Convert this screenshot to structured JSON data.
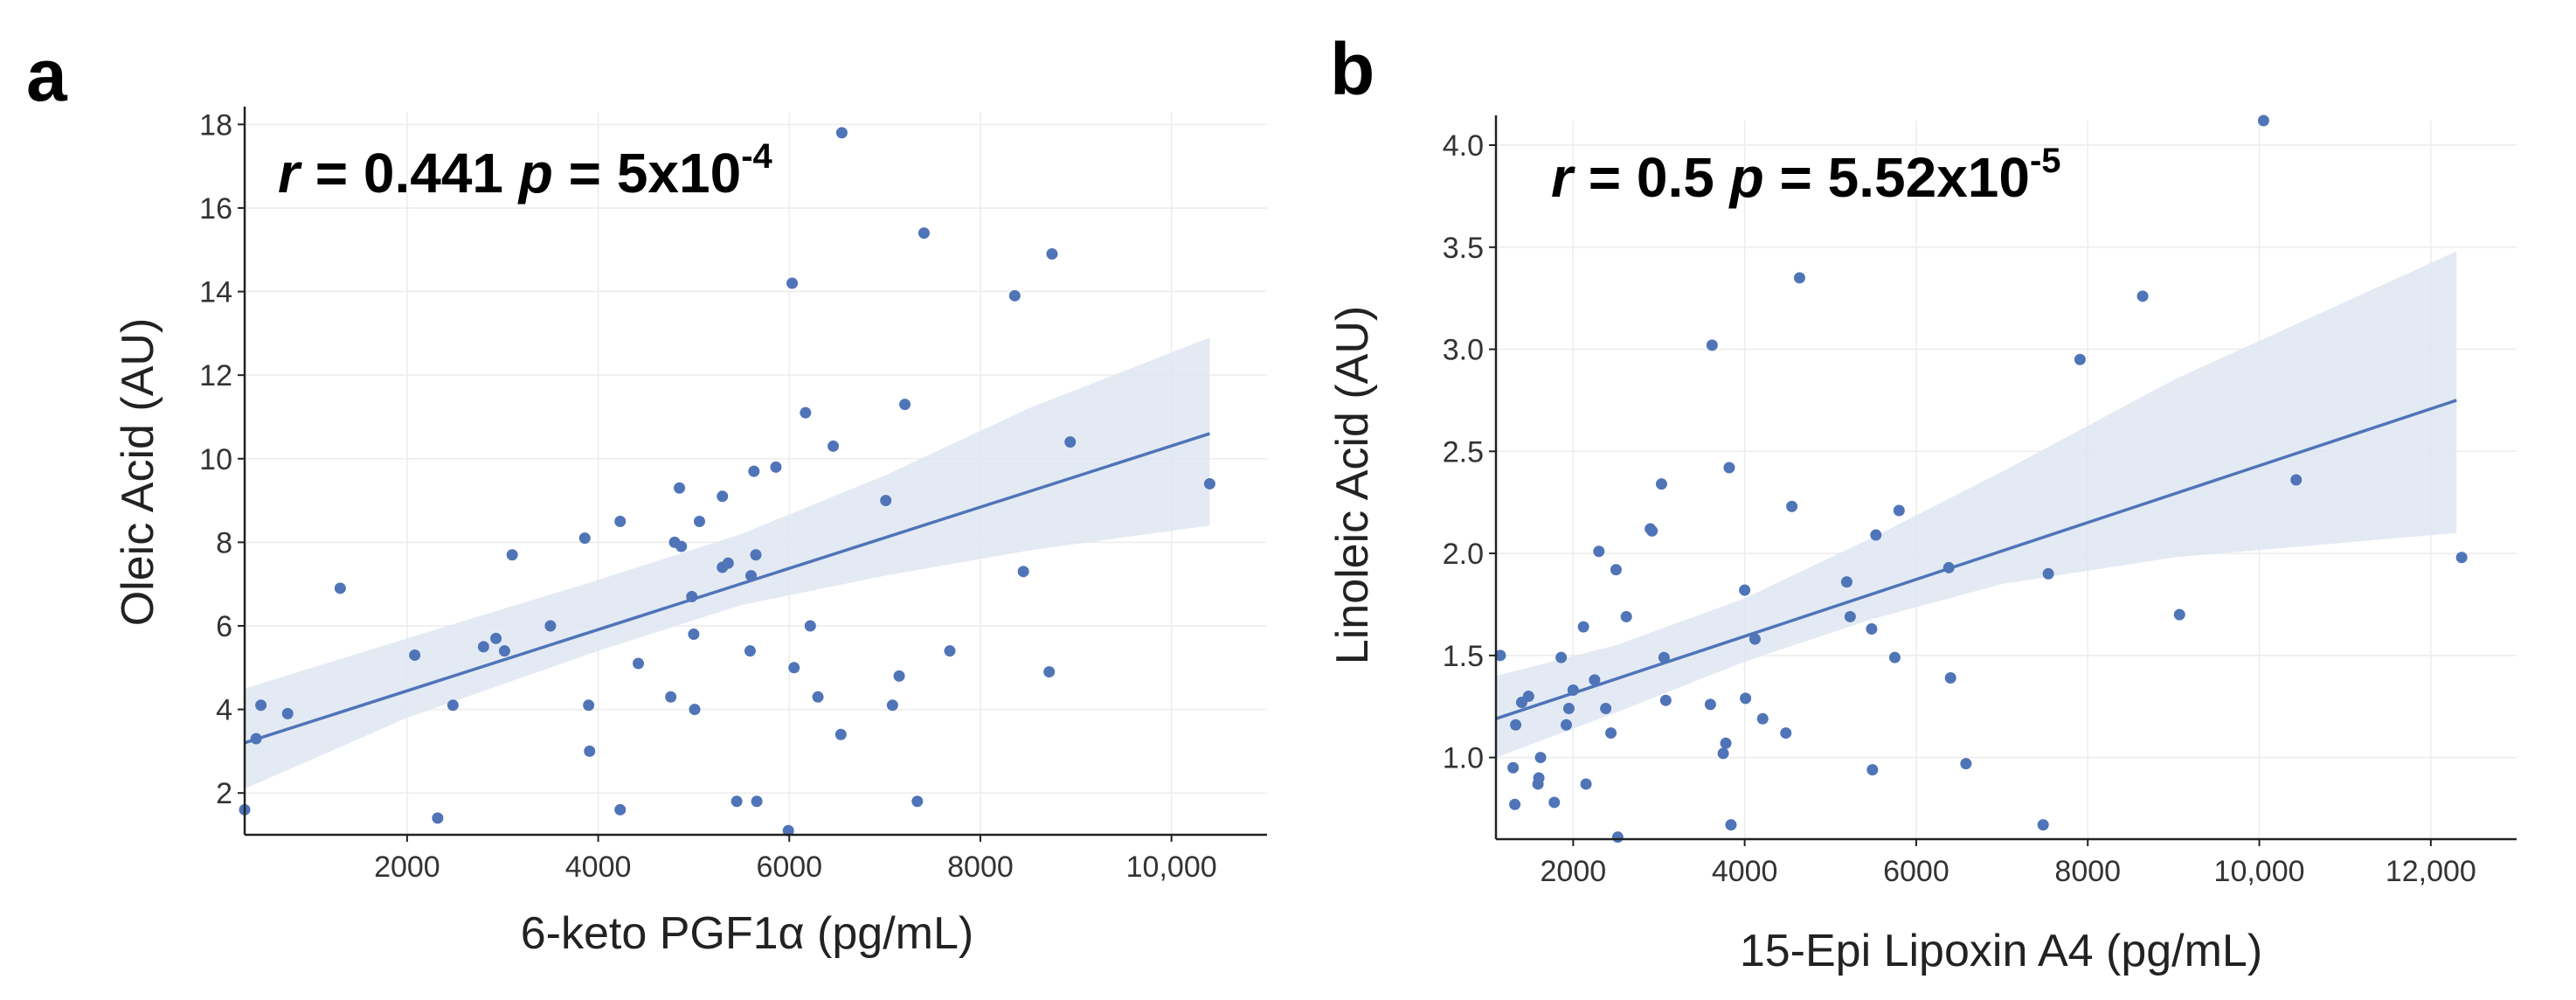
{
  "chart_data": [
    {
      "type": "scatter",
      "panel_label": "a",
      "stat": {
        "r_sym": "r",
        "r_eq": " = 0.441 ",
        "p_sym": "p",
        "p_eq": " = 5x10",
        "p_exp": "-4"
      },
      "xlabel": "6-keto PGF1α (pg/mL)",
      "ylabel": "Oleic Acid (AU)",
      "xlim": [
        300,
        11000
      ],
      "ylim": [
        1.0,
        18.3
      ],
      "xticks": [
        2000,
        4000,
        6000,
        8000,
        10000
      ],
      "xtick_labels": [
        "2000",
        "4000",
        "6000",
        "8000",
        "10,000"
      ],
      "yticks": [
        2,
        4,
        6,
        8,
        10,
        12,
        14,
        16,
        18
      ],
      "ytick_labels": [
        "2",
        "4",
        "6",
        "8",
        "10",
        "12",
        "14",
        "16",
        "18"
      ],
      "fit": {
        "x": [
          300,
          10400
        ],
        "y": [
          3.2,
          10.6
        ]
      },
      "ci": {
        "x": [
          300,
          2000,
          4000,
          5500,
          7000,
          8500,
          10400
        ],
        "lower": [
          2.1,
          3.8,
          5.4,
          6.5,
          7.2,
          7.8,
          8.4
        ],
        "upper": [
          4.5,
          5.7,
          7.1,
          8.2,
          9.6,
          11.2,
          12.9
        ]
      },
      "points": [
        {
          "x": 300,
          "y": 1.6
        },
        {
          "x": 420,
          "y": 3.3
        },
        {
          "x": 470,
          "y": 4.1
        },
        {
          "x": 750,
          "y": 3.9
        },
        {
          "x": 1300,
          "y": 6.9
        },
        {
          "x": 2080,
          "y": 5.3
        },
        {
          "x": 2320,
          "y": 1.4
        },
        {
          "x": 2480,
          "y": 4.1
        },
        {
          "x": 2800,
          "y": 5.5
        },
        {
          "x": 2930,
          "y": 5.7
        },
        {
          "x": 3020,
          "y": 5.4
        },
        {
          "x": 3100,
          "y": 7.7
        },
        {
          "x": 3500,
          "y": 6.0
        },
        {
          "x": 3860,
          "y": 8.1
        },
        {
          "x": 3900,
          "y": 4.1
        },
        {
          "x": 3910,
          "y": 3.0
        },
        {
          "x": 4230,
          "y": 8.5
        },
        {
          "x": 4230,
          "y": 1.6
        },
        {
          "x": 4420,
          "y": 5.1
        },
        {
          "x": 4760,
          "y": 4.3
        },
        {
          "x": 4800,
          "y": 8.0
        },
        {
          "x": 4850,
          "y": 9.3
        },
        {
          "x": 4870,
          "y": 7.9
        },
        {
          "x": 4980,
          "y": 6.7
        },
        {
          "x": 5000,
          "y": 5.8
        },
        {
          "x": 5010,
          "y": 4.0
        },
        {
          "x": 5060,
          "y": 8.5
        },
        {
          "x": 5300,
          "y": 9.1
        },
        {
          "x": 5300,
          "y": 7.4
        },
        {
          "x": 5360,
          "y": 7.5
        },
        {
          "x": 5450,
          "y": 1.8
        },
        {
          "x": 5590,
          "y": 5.4
        },
        {
          "x": 5600,
          "y": 7.2
        },
        {
          "x": 5630,
          "y": 9.7
        },
        {
          "x": 5650,
          "y": 7.7
        },
        {
          "x": 5660,
          "y": 1.8
        },
        {
          "x": 5860,
          "y": 9.8
        },
        {
          "x": 5990,
          "y": 1.1
        },
        {
          "x": 6030,
          "y": 14.2
        },
        {
          "x": 6050,
          "y": 5.0
        },
        {
          "x": 6170,
          "y": 11.1
        },
        {
          "x": 6220,
          "y": 6.0
        },
        {
          "x": 6300,
          "y": 4.3
        },
        {
          "x": 6460,
          "y": 10.3
        },
        {
          "x": 6540,
          "y": 3.4
        },
        {
          "x": 6550,
          "y": 17.8
        },
        {
          "x": 7010,
          "y": 9.0
        },
        {
          "x": 7080,
          "y": 4.1
        },
        {
          "x": 7150,
          "y": 4.8
        },
        {
          "x": 7210,
          "y": 11.3
        },
        {
          "x": 7340,
          "y": 1.8
        },
        {
          "x": 7410,
          "y": 15.4
        },
        {
          "x": 7680,
          "y": 5.4
        },
        {
          "x": 8360,
          "y": 13.9
        },
        {
          "x": 8450,
          "y": 7.3
        },
        {
          "x": 8720,
          "y": 4.9
        },
        {
          "x": 8750,
          "y": 14.9
        },
        {
          "x": 8940,
          "y": 10.4
        },
        {
          "x": 10400,
          "y": 9.4
        }
      ]
    },
    {
      "type": "scatter",
      "panel_label": "b",
      "stat": {
        "r_sym": "r",
        "r_eq": " = 0.5 ",
        "p_sym": "p",
        "p_eq": " = 5.52x10",
        "p_exp": "-5"
      },
      "xlabel": "15-Epi Lipoxin A4  (pg/mL)",
      "ylabel": "Linoleic Acid (AU)",
      "xlim": [
        1100,
        13000
      ],
      "ylim": [
        0.6,
        4.12
      ],
      "xticks": [
        2000,
        4000,
        6000,
        8000,
        10000,
        12000
      ],
      "xtick_labels": [
        "2000",
        "4000",
        "6000",
        "8000",
        "10,000",
        "12,000"
      ],
      "yticks": [
        1.0,
        1.5,
        2.0,
        2.5,
        3.0,
        3.5,
        4.0
      ],
      "ytick_labels": [
        "1.0",
        "1.5",
        "2.0",
        "2.5",
        "3.0",
        "3.5",
        "4.0"
      ],
      "fit": {
        "x": [
          1100,
          12300
        ],
        "y": [
          1.19,
          2.75
        ]
      },
      "ci": {
        "x": [
          1100,
          2500,
          4000,
          5500,
          7000,
          9000,
          12300
        ],
        "lower": [
          1.0,
          1.22,
          1.47,
          1.68,
          1.85,
          1.98,
          2.1
        ],
        "upper": [
          1.4,
          1.55,
          1.78,
          2.08,
          2.4,
          2.85,
          3.48
        ]
      },
      "points": [
        {
          "x": 1150,
          "y": 1.5
        },
        {
          "x": 1300,
          "y": 0.95
        },
        {
          "x": 1320,
          "y": 0.77
        },
        {
          "x": 1330,
          "y": 1.16
        },
        {
          "x": 1400,
          "y": 1.27
        },
        {
          "x": 1480,
          "y": 1.3
        },
        {
          "x": 1590,
          "y": 0.87
        },
        {
          "x": 1600,
          "y": 0.9
        },
        {
          "x": 1620,
          "y": 1.0
        },
        {
          "x": 1780,
          "y": 0.78
        },
        {
          "x": 1860,
          "y": 1.49
        },
        {
          "x": 1920,
          "y": 1.16
        },
        {
          "x": 1950,
          "y": 1.24
        },
        {
          "x": 2000,
          "y": 1.33
        },
        {
          "x": 2120,
          "y": 1.64
        },
        {
          "x": 2150,
          "y": 0.87
        },
        {
          "x": 2250,
          "y": 1.38
        },
        {
          "x": 2300,
          "y": 2.01
        },
        {
          "x": 2380,
          "y": 1.24
        },
        {
          "x": 2440,
          "y": 1.12
        },
        {
          "x": 2500,
          "y": 1.92
        },
        {
          "x": 2520,
          "y": 0.61
        },
        {
          "x": 2620,
          "y": 1.69
        },
        {
          "x": 2900,
          "y": 2.12
        },
        {
          "x": 2920,
          "y": 2.11
        },
        {
          "x": 3030,
          "y": 2.34
        },
        {
          "x": 3060,
          "y": 1.49
        },
        {
          "x": 3080,
          "y": 1.28
        },
        {
          "x": 3600,
          "y": 1.26
        },
        {
          "x": 3620,
          "y": 3.02
        },
        {
          "x": 3750,
          "y": 1.02
        },
        {
          "x": 3780,
          "y": 1.07
        },
        {
          "x": 3820,
          "y": 2.42
        },
        {
          "x": 3840,
          "y": 0.67
        },
        {
          "x": 4000,
          "y": 1.82
        },
        {
          "x": 4010,
          "y": 1.29
        },
        {
          "x": 4120,
          "y": 1.58
        },
        {
          "x": 4210,
          "y": 1.19
        },
        {
          "x": 4480,
          "y": 1.12
        },
        {
          "x": 4550,
          "y": 2.23
        },
        {
          "x": 4640,
          "y": 3.35
        },
        {
          "x": 5190,
          "y": 1.86
        },
        {
          "x": 5230,
          "y": 1.69
        },
        {
          "x": 5480,
          "y": 1.63
        },
        {
          "x": 5490,
          "y": 0.94
        },
        {
          "x": 5530,
          "y": 2.09
        },
        {
          "x": 5750,
          "y": 1.49
        },
        {
          "x": 5800,
          "y": 2.21
        },
        {
          "x": 6380,
          "y": 1.93
        },
        {
          "x": 6400,
          "y": 1.39
        },
        {
          "x": 6580,
          "y": 0.97
        },
        {
          "x": 7480,
          "y": 0.67
        },
        {
          "x": 7540,
          "y": 1.9
        },
        {
          "x": 7910,
          "y": 2.95
        },
        {
          "x": 8640,
          "y": 3.26
        },
        {
          "x": 9070,
          "y": 1.7
        },
        {
          "x": 10050,
          "y": 4.12
        },
        {
          "x": 10430,
          "y": 2.36
        },
        {
          "x": 12360,
          "y": 1.98
        }
      ]
    }
  ]
}
